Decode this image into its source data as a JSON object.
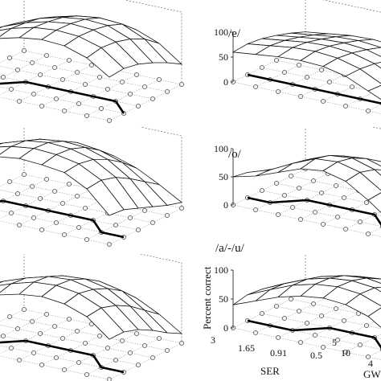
{
  "figure": {
    "panels": [
      {
        "title": "",
        "show_z_ticks": false
      },
      {
        "title": "/e/",
        "show_z_ticks": true
      },
      {
        "title": "",
        "show_z_ticks": false
      },
      {
        "title": "/o/",
        "show_z_ticks": true
      },
      {
        "title": "",
        "show_z_ticks": false
      },
      {
        "title": "/a/-/u/",
        "show_z_ticks": true
      }
    ],
    "z_axis_label": "Percent correct",
    "x_axis_label": "SER",
    "y_axis_label": "GW",
    "z_ticks": [
      "0",
      "50",
      "100"
    ],
    "x_ticks": [
      "3",
      "1.65",
      "0.91",
      "0.5"
    ],
    "y_ticks": [
      "5",
      "10",
      "4"
    ]
  },
  "chart_data": [
    {
      "type": "surface",
      "title": "",
      "zlim": [
        0,
        100
      ],
      "surface": [
        [
          60,
          70,
          80,
          88,
          92,
          90,
          80,
          60
        ],
        [
          58,
          72,
          84,
          92,
          95,
          93,
          84,
          62
        ],
        [
          55,
          70,
          82,
          90,
          94,
          92,
          82,
          58
        ],
        [
          50,
          65,
          78,
          86,
          90,
          88,
          76,
          50
        ],
        [
          42,
          58,
          70,
          78,
          82,
          80,
          66,
          40
        ],
        [
          30,
          45,
          55,
          62,
          65,
          62,
          50,
          28
        ]
      ]
    },
    {
      "type": "surface",
      "title": "/e/",
      "zlim": [
        0,
        100
      ],
      "surface": [
        [
          60,
          65,
          70,
          72,
          70,
          60,
          40,
          20
        ],
        [
          62,
          68,
          74,
          76,
          72,
          60,
          38,
          18
        ],
        [
          58,
          64,
          70,
          72,
          68,
          56,
          34,
          14
        ],
        [
          50,
          56,
          62,
          64,
          60,
          48,
          28,
          10
        ],
        [
          40,
          46,
          52,
          54,
          50,
          40,
          20,
          6
        ],
        [
          28,
          34,
          40,
          42,
          38,
          28,
          12,
          4
        ]
      ]
    },
    {
      "type": "surface",
      "title": "",
      "zlim": [
        0,
        100
      ],
      "surface": [
        [
          70,
          80,
          88,
          92,
          90,
          86,
          70,
          40
        ],
        [
          72,
          84,
          92,
          96,
          94,
          88,
          72,
          38
        ],
        [
          68,
          80,
          90,
          94,
          92,
          84,
          66,
          30
        ],
        [
          60,
          72,
          82,
          86,
          84,
          74,
          54,
          22
        ],
        [
          48,
          60,
          70,
          74,
          70,
          60,
          40,
          14
        ],
        [
          34,
          44,
          52,
          56,
          52,
          42,
          26,
          8
        ]
      ]
    },
    {
      "type": "surface",
      "title": "/o/",
      "zlim": [
        0,
        100
      ],
      "surface": [
        [
          50,
          60,
          75,
          90,
          95,
          85,
          60,
          30
        ],
        [
          45,
          58,
          78,
          95,
          98,
          88,
          62,
          28
        ],
        [
          35,
          50,
          72,
          88,
          92,
          80,
          52,
          20
        ],
        [
          25,
          38,
          58,
          74,
          78,
          66,
          38,
          12
        ],
        [
          15,
          26,
          42,
          56,
          60,
          48,
          24,
          6
        ],
        [
          8,
          14,
          26,
          36,
          40,
          30,
          12,
          2
        ]
      ]
    },
    {
      "type": "surface",
      "title": "",
      "zlim": [
        0,
        100
      ],
      "surface": [
        [
          55,
          65,
          75,
          82,
          85,
          82,
          72,
          50
        ],
        [
          58,
          70,
          80,
          88,
          90,
          86,
          74,
          50
        ],
        [
          55,
          68,
          78,
          86,
          88,
          82,
          68,
          44
        ],
        [
          48,
          60,
          70,
          78,
          80,
          74,
          58,
          34
        ],
        [
          38,
          48,
          58,
          66,
          68,
          62,
          44,
          22
        ],
        [
          26,
          34,
          42,
          48,
          50,
          44,
          30,
          12
        ]
      ]
    },
    {
      "type": "surface",
      "title": "/a/-/u/",
      "zlim": [
        0,
        100
      ],
      "zlabel": "Percent correct",
      "xlabel": "SER",
      "ylabel": "GW",
      "surface": [
        [
          40,
          55,
          70,
          80,
          85,
          82,
          70,
          45
        ],
        [
          45,
          62,
          78,
          88,
          92,
          88,
          74,
          46
        ],
        [
          42,
          60,
          76,
          86,
          90,
          86,
          70,
          40
        ],
        [
          36,
          52,
          68,
          78,
          82,
          76,
          58,
          30
        ],
        [
          26,
          40,
          54,
          64,
          68,
          62,
          42,
          18
        ],
        [
          16,
          26,
          36,
          44,
          46,
          40,
          24,
          8
        ]
      ]
    }
  ]
}
